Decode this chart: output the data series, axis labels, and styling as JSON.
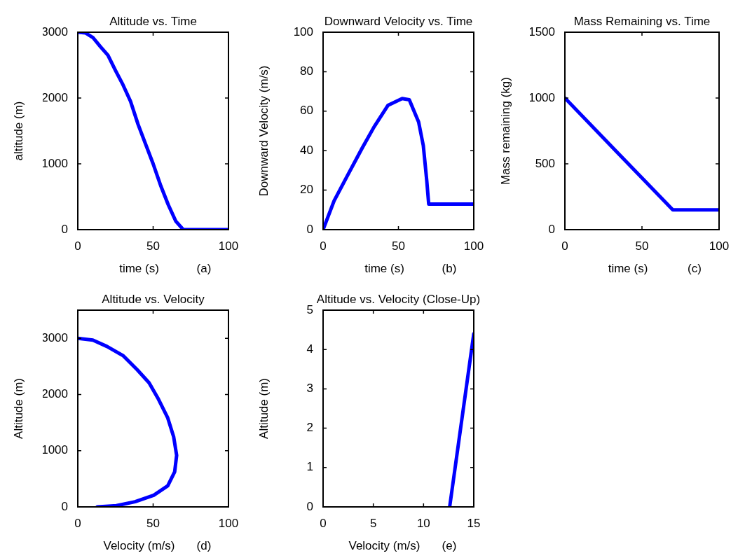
{
  "chart_data": [
    {
      "type": "line",
      "title": "Altitude vs. Time",
      "xlabel": "time (s)",
      "ylabel": "altitude (m)",
      "annotations": [
        "(a)"
      ],
      "color": "#0000ff",
      "xlim": [
        0,
        100
      ],
      "xticks": [
        0,
        50,
        100
      ],
      "ylim": [
        0,
        3000
      ],
      "yticks": [
        0,
        1000,
        2000,
        3000
      ],
      "x": [
        0,
        5,
        10,
        15,
        20,
        25,
        30,
        35,
        40,
        45,
        50,
        55,
        60,
        65,
        70,
        100
      ],
      "values": [
        3000,
        2990,
        2920,
        2780,
        2650,
        2420,
        2200,
        1950,
        1600,
        1300,
        1000,
        670,
        380,
        130,
        0,
        0
      ]
    },
    {
      "type": "line",
      "title": "Downward Velocity vs. Time",
      "xlabel": "time (s)",
      "ylabel": "Downward Velocity (m/s)",
      "annotations": [
        "(b)"
      ],
      "color": "#0000ff",
      "xlim": [
        0,
        100
      ],
      "xticks": [
        0,
        50,
        100
      ],
      "ylim": [
        0,
        100
      ],
      "yticks": [
        0,
        20,
        40,
        60,
        80,
        100
      ],
      "x": [
        0,
        7.3,
        15.9,
        26,
        33.8,
        43,
        52.5,
        57.2,
        63.4,
        66.5,
        68.8,
        70.1,
        100
      ],
      "values": [
        0,
        14.6,
        27,
        41.4,
        52,
        62.9,
        66.4,
        65.8,
        54.5,
        42.6,
        24.8,
        12.9,
        12.9
      ]
    },
    {
      "type": "line",
      "title": "Mass Remaining vs. Time",
      "xlabel": "time (s)",
      "ylabel": "Mass remaining (kg)",
      "annotations": [
        "(c)"
      ],
      "color": "#0000ff",
      "xlim": [
        0,
        100
      ],
      "xticks": [
        0,
        50,
        100
      ],
      "ylim": [
        0,
        1500
      ],
      "yticks": [
        0,
        500,
        1000,
        1500
      ],
      "x": [
        0,
        35,
        70,
        100
      ],
      "values": [
        1000,
        575,
        150,
        150
      ]
    },
    {
      "type": "line",
      "title": "Altitude vs. Velocity",
      "xlabel": "Velocity (m/s)",
      "ylabel": "Altitude (m)",
      "annotations": [
        "(d)"
      ],
      "color": "#0000ff",
      "xlim": [
        0,
        100
      ],
      "xticks": [
        0,
        50,
        100
      ],
      "ylim": [
        0,
        3500
      ],
      "yticks": [
        0,
        1000,
        2000,
        3000
      ],
      "x": [
        0,
        10,
        19.4,
        30.2,
        39.5,
        47.3,
        53.5,
        59.7,
        63.6,
        65.6,
        64.3,
        59.7,
        50.4,
        38,
        25.6,
        12.9
      ],
      "values": [
        3000,
        2967,
        2854,
        2688,
        2438,
        2208,
        1917,
        1583,
        1250,
        917,
        625,
        375,
        208,
        92,
        21,
        0
      ]
    },
    {
      "type": "line",
      "title": "Altitude vs. Velocity (Close-Up)",
      "xlabel": "Velocity (m/s)",
      "ylabel": "Altitude (m)",
      "annotations": [
        "(e)"
      ],
      "color": "#0000ff",
      "xlim": [
        0,
        15
      ],
      "xticks": [
        0,
        5,
        10,
        15
      ],
      "ylim": [
        0,
        5
      ],
      "yticks": [
        0,
        1,
        2,
        3,
        4,
        5
      ],
      "x": [
        12.6,
        15
      ],
      "values": [
        0,
        4.4
      ]
    }
  ]
}
